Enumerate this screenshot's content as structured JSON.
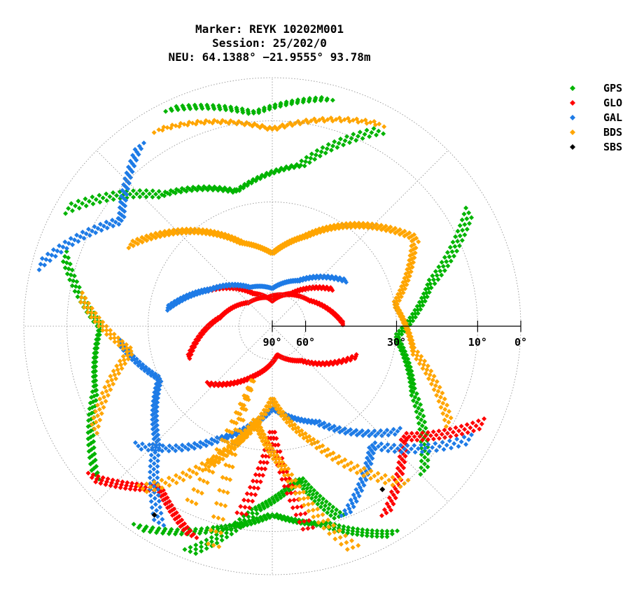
{
  "chart_data": {
    "type": "scatter",
    "subtype": "polar-skyplot",
    "title": [
      "Marker: REYK 10202M001",
      "Session: 25/202/0",
      "NEU: 64.1388° −21.9555° 93.78m"
    ],
    "radial_axis": {
      "quantity": "elevation",
      "unit": "degrees",
      "range": [
        0,
        90
      ],
      "center_value": 90,
      "edge_value": 0,
      "tick_values": [
        90,
        60,
        30,
        10,
        0
      ],
      "tick_labels": [
        "90°",
        "60°",
        "30°",
        "10°",
        "0°"
      ],
      "grid_circles": [
        60,
        30,
        10,
        0
      ]
    },
    "angular_axis": {
      "quantity": "azimuth",
      "unit": "degrees",
      "zero_at": "north-top",
      "direction": "clockwise",
      "grid_spokes_every": 45
    },
    "legend": {
      "placement": "top-right",
      "entries": [
        {
          "name": "GPS",
          "color": "#00b400"
        },
        {
          "name": "GLO",
          "color": "#ff0000"
        },
        {
          "name": "GAL",
          "color": "#1e7be6"
        },
        {
          "name": "BDS",
          "color": "#ffa500"
        },
        {
          "name": "SBS",
          "color": "#000000"
        }
      ]
    },
    "series": [
      {
        "name": "GPS",
        "color": "#00b400",
        "tracks": [
          {
            "az": [
              300,
              320,
              345,
              10,
              30
            ],
            "el": [
              3,
              18,
              26,
              20,
              5
            ]
          },
          {
            "az": [
              200,
              185,
              170,
              160
            ],
            "el": [
              2,
              15,
              22,
              10
            ]
          },
          {
            "az": [
              60,
              75,
              95,
              115,
              135
            ],
            "el": [
              5,
              20,
              30,
              22,
              8
            ]
          },
          {
            "az": [
              230,
              250,
              270,
              290
            ],
            "el": [
              4,
              14,
              18,
              6
            ]
          },
          {
            "az": [
              150,
              165,
              180,
              195,
              215
            ],
            "el": [
              2,
              10,
              14,
              9,
              1
            ]
          },
          {
            "az": [
              335,
              355,
              15
            ],
            "el": [
              2,
              8,
              3
            ]
          }
        ]
      },
      {
        "name": "GLO",
        "color": "#ff0000",
        "tracks": [
          {
            "az": [
              250,
              280,
              315,
              350,
              20,
              55,
              90
            ],
            "el": [
              40,
              52,
              60,
              62,
              60,
              55,
              45
            ]
          },
          {
            "az": [
              110,
              140,
              170,
              200,
              230
            ],
            "el": [
              40,
              55,
              62,
              52,
              40
            ]
          },
          {
            "az": [
              300,
              330,
              0,
              30,
              60
            ],
            "el": [
              45,
              58,
              64,
              58,
              45
            ]
          },
          {
            "az": [
              170,
              180,
              190
            ],
            "el": [
              10,
              35,
              12
            ]
          },
          {
            "az": [
              230,
              215,
              200
            ],
            "el": [
              3,
              12,
              5
            ]
          },
          {
            "az": [
              115,
              130,
              150
            ],
            "el": [
              4,
              18,
              6
            ]
          }
        ]
      },
      {
        "name": "GAL",
        "color": "#1e7be6",
        "tracks": [
          {
            "az": [
              280,
              300,
              330,
              0,
              30,
              60
            ],
            "el": [
              35,
              45,
              55,
              58,
              52,
              40
            ]
          },
          {
            "az": [
              130,
              155,
              180,
              205,
              230
            ],
            "el": [
              20,
              35,
              42,
              30,
              15
            ]
          },
          {
            "az": [
              210,
              225,
              245,
              265
            ],
            "el": [
              5,
              20,
              30,
              22
            ]
          },
          {
            "az": [
              120,
              140,
              160
            ],
            "el": [
              5,
              22,
              10
            ]
          },
          {
            "az": [
              285,
              305,
              325
            ],
            "el": [
              2,
              15,
              5
            ]
          }
        ]
      },
      {
        "name": "BDS",
        "color": "#ffa500",
        "tracks": [
          {
            "az": [
              300,
              320,
              340,
              0,
              20,
              40,
              60
            ],
            "el": [
              20,
              30,
              40,
              45,
              38,
              28,
              18
            ]
          },
          {
            "az": [
              140,
              160,
              180,
              200,
              220
            ],
            "el": [
              10,
              30,
              45,
              28,
              8
            ]
          },
          {
            "az": [
              60,
              80,
              100,
              120
            ],
            "el": [
              20,
              30,
              25,
              10
            ]
          },
          {
            "az": [
              240,
              260,
              280
            ],
            "el": [
              10,
              25,
              12
            ]
          },
          {
            "az": [
              160,
              175,
              190,
              205
            ],
            "el": [
              3,
              25,
              38,
              22
            ]
          },
          {
            "az": [
              195,
              200,
              205
            ],
            "el": [
              5,
              50,
              10
            ]
          },
          {
            "az": [
              330,
              0,
              30
            ],
            "el": [
              5,
              12,
              4
            ]
          }
        ]
      },
      {
        "name": "SBS",
        "color": "#000000",
        "tracks": [
          {
            "az": [
              212
            ],
            "el": [
              6
            ]
          },
          {
            "az": [
              146
            ],
            "el": [
              12
            ]
          }
        ]
      }
    ]
  }
}
